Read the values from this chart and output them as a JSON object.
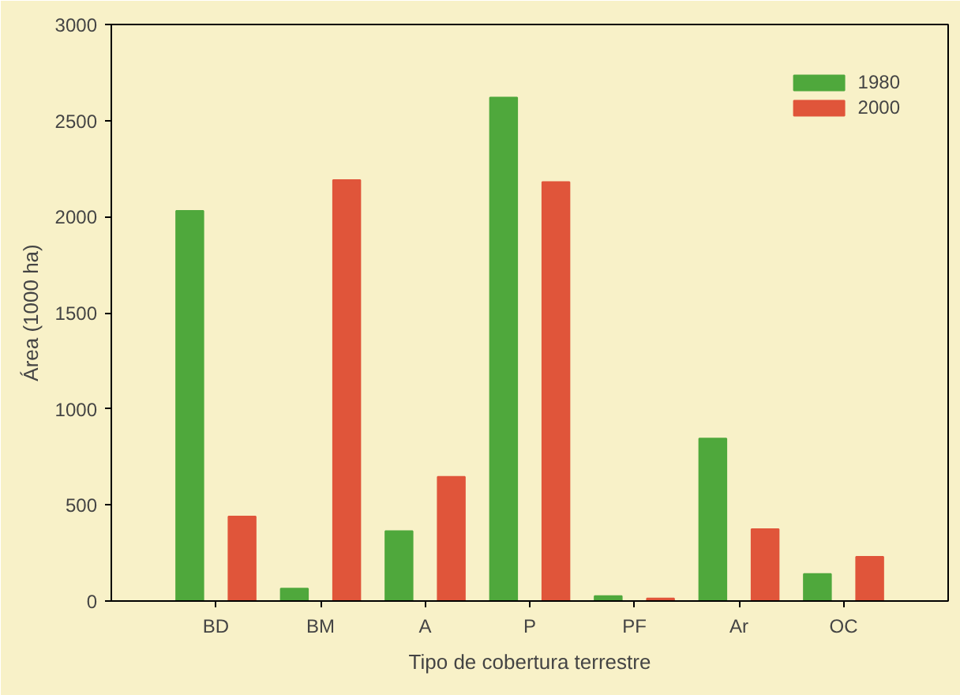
{
  "chart_data": {
    "type": "bar",
    "xlabel": "Tipo de cobertura terrestre",
    "ylabel": "Área (1000 ha)",
    "categories": [
      "BD",
      "BM",
      "A",
      "P",
      "PF",
      "Ar",
      "OC"
    ],
    "series": [
      {
        "name": "1980",
        "color": "#4fa83c",
        "values": [
          2030,
          65,
          364,
          2620,
          26,
          846,
          141
        ]
      },
      {
        "name": "2000",
        "color": "#e0553a",
        "values": [
          440,
          2190,
          646,
          2180,
          13,
          374,
          230
        ]
      }
    ],
    "ylim": [
      0,
      3000
    ],
    "yticks": [
      0,
      500,
      1000,
      1500,
      2000,
      2500,
      3000
    ],
    "grid": false,
    "legend": "top right"
  }
}
